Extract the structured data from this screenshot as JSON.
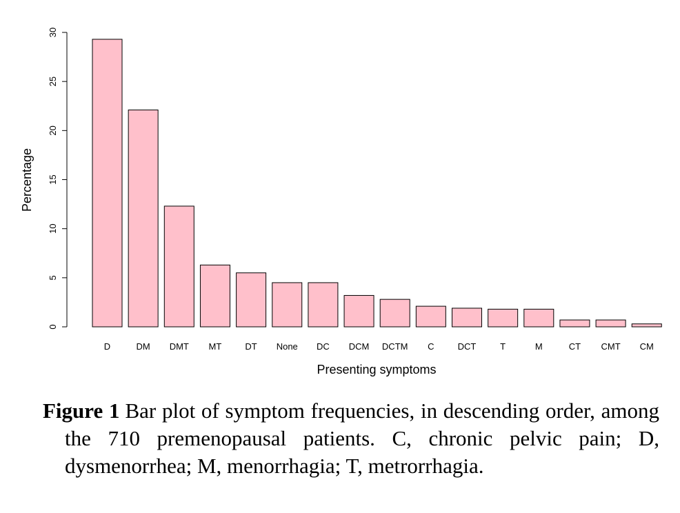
{
  "chart_data": {
    "type": "bar",
    "categories": [
      "D",
      "DM",
      "DMT",
      "MT",
      "DT",
      "None",
      "DC",
      "DCM",
      "DCTM",
      "C",
      "DCT",
      "T",
      "M",
      "CT",
      "CMT",
      "CM"
    ],
    "values": [
      29.3,
      22.1,
      12.3,
      6.3,
      5.5,
      4.5,
      4.5,
      3.2,
      2.8,
      2.1,
      1.9,
      1.8,
      1.8,
      0.7,
      0.7,
      0.3
    ],
    "xlabel": "Presenting symptoms",
    "ylabel": "Percentage",
    "ylim": [
      0,
      30
    ],
    "yticks": [
      0,
      5,
      10,
      15,
      20,
      25,
      30
    ],
    "bar_color": "#ffc0cb",
    "bar_border": "#000000",
    "grid": false
  },
  "caption": {
    "label": "Figure 1",
    "text": "Bar plot of symptom frequencies, in descending order, among the 710 premenopausal patients. C, chronic pelvic pain; D, dysmenorrhea; M, menorrhagia; T, metrorrhagia."
  }
}
